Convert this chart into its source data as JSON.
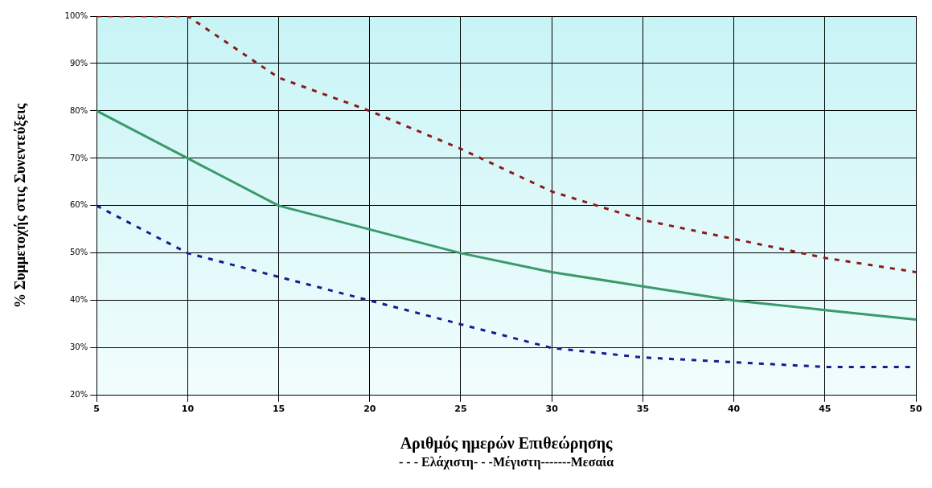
{
  "chart_data": {
    "type": "line",
    "xlabel": "Αριθμός ημερών Επιθεώρησης",
    "ylabel": "% Συμμετοχής στις Συνεντεύξεις",
    "x": [
      5,
      10,
      15,
      20,
      25,
      30,
      35,
      40,
      45,
      50
    ],
    "series": [
      {
        "color": "#8b1a1a",
        "line_style": "dashed",
        "values": [
          100,
          100,
          87,
          80,
          72,
          63,
          57,
          53,
          49,
          46
        ]
      },
      {
        "color": "#3a9a6a",
        "line_style": "solid",
        "values": [
          80,
          70,
          60,
          55,
          50,
          46,
          43,
          40,
          38,
          36
        ]
      },
      {
        "color": "#1a1a8c",
        "line_style": "dashed",
        "values": [
          60,
          50,
          45,
          40,
          35,
          30,
          28,
          27,
          26,
          26
        ]
      }
    ],
    "xlim": [
      5,
      50
    ],
    "xticks": [
      5,
      10,
      15,
      20,
      25,
      30,
      35,
      40,
      45,
      50
    ],
    "ylim": [
      20,
      100
    ],
    "yticks": [
      {
        "value": 20,
        "label": "20%"
      },
      {
        "value": 30,
        "label": "30%"
      },
      {
        "value": 40,
        "label": "40%"
      },
      {
        "value": 50,
        "label": "50%"
      },
      {
        "value": 60,
        "label": "60%"
      },
      {
        "value": 70,
        "label": "70%"
      },
      {
        "value": 80,
        "label": "80%"
      },
      {
        "value": 90,
        "label": "90%"
      },
      {
        "value": 100,
        "label": "100%"
      }
    ],
    "grid": true,
    "legend": false,
    "marker": "none",
    "annotations": [
      "- - - Ελάχιστη- - -Μέγιστη-------Μεσαία"
    ]
  }
}
